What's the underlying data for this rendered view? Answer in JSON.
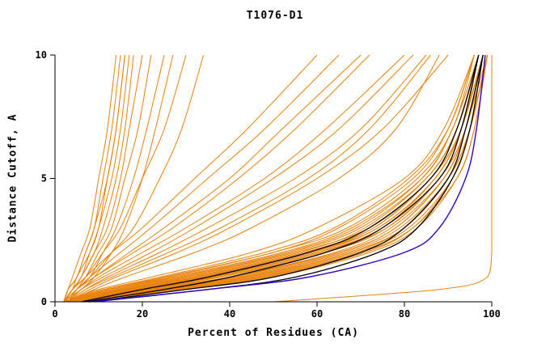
{
  "chart_data": {
    "type": "line",
    "title": "T1076-D1",
    "xlabel": "Percent of Residues (CA)",
    "ylabel": "Distance Cutoff, A",
    "xlim": [
      0,
      100
    ],
    "ylim": [
      0,
      10
    ],
    "xticks": [
      0,
      20,
      40,
      60,
      80,
      100
    ],
    "yticks": [
      0,
      5,
      10
    ],
    "grid": false,
    "legend": "none",
    "colors": {
      "orange": "#e8820c",
      "black": "#000000",
      "blue": "#3300cc"
    },
    "y_anchors": [
      0,
      0.5,
      1,
      2,
      3,
      5,
      7,
      10
    ],
    "series": [
      {
        "color": "orange",
        "xs": [
          3,
          12,
          25,
          50,
          65,
          82,
          90,
          96
        ]
      },
      {
        "color": "orange",
        "xs": [
          3,
          18,
          35,
          60,
          75,
          88,
          93,
          98
        ]
      },
      {
        "color": "orange",
        "xs": [
          4,
          20,
          40,
          65,
          78,
          89,
          94,
          98
        ]
      },
      {
        "color": "orange",
        "xs": [
          2,
          10,
          22,
          45,
          60,
          80,
          89,
          96
        ]
      },
      {
        "color": "orange",
        "xs": [
          3,
          25,
          45,
          68,
          80,
          90,
          94,
          99
        ]
      },
      {
        "color": "orange",
        "xs": [
          3,
          15,
          30,
          55,
          72,
          86,
          92,
          97
        ]
      },
      {
        "color": "orange",
        "xs": [
          4,
          22,
          42,
          66,
          79,
          90,
          95,
          99
        ]
      },
      {
        "color": "orange",
        "xs": [
          3,
          17,
          33,
          58,
          74,
          87,
          93,
          98
        ]
      },
      {
        "color": "orange",
        "xs": [
          2,
          13,
          27,
          52,
          68,
          84,
          91,
          97
        ]
      },
      {
        "color": "orange",
        "xs": [
          3,
          20,
          38,
          62,
          76,
          88,
          94,
          98
        ]
      },
      {
        "color": "orange",
        "xs": [
          4,
          28,
          48,
          70,
          82,
          91,
          95,
          99
        ]
      },
      {
        "color": "orange",
        "xs": [
          3,
          16,
          32,
          57,
          73,
          86,
          93,
          97
        ]
      },
      {
        "color": "orange",
        "xs": [
          2,
          11,
          24,
          48,
          64,
          81,
          90,
          96
        ]
      },
      {
        "color": "orange",
        "xs": [
          3,
          23,
          43,
          67,
          80,
          90,
          95,
          99
        ]
      },
      {
        "color": "orange",
        "xs": [
          3,
          19,
          36,
          61,
          75,
          87,
          93,
          98
        ]
      },
      {
        "color": "orange",
        "xs": [
          4,
          26,
          46,
          69,
          81,
          91,
          95,
          99
        ]
      },
      {
        "color": "orange",
        "xs": [
          3,
          14,
          29,
          54,
          70,
          85,
          92,
          97
        ]
      },
      {
        "color": "orange",
        "xs": [
          2,
          12,
          26,
          50,
          67,
          83,
          91,
          96
        ]
      },
      {
        "color": "orange",
        "xs": [
          3,
          21,
          40,
          64,
          77,
          89,
          94,
          98
        ]
      },
      {
        "color": "orange",
        "xs": [
          4,
          30,
          50,
          72,
          83,
          92,
          96,
          99
        ]
      },
      {
        "color": "orange",
        "xs": [
          3,
          18,
          34,
          59,
          74,
          87,
          93,
          98
        ]
      },
      {
        "color": "orange",
        "xs": [
          2,
          15,
          31,
          56,
          71,
          85,
          92,
          97
        ]
      },
      {
        "color": "orange",
        "xs": [
          3,
          24,
          44,
          68,
          80,
          90,
          95,
          99
        ]
      },
      {
        "color": "orange",
        "xs": [
          3,
          17,
          35,
          60,
          76,
          88,
          94,
          98
        ]
      },
      {
        "color": "orange",
        "xs": [
          4,
          27,
          47,
          70,
          82,
          91,
          95,
          99
        ]
      },
      {
        "color": "orange",
        "xs": [
          3,
          13,
          28,
          53,
          69,
          84,
          91,
          97
        ]
      },
      {
        "color": "orange",
        "xs": [
          2,
          16,
          33,
          58,
          73,
          86,
          93,
          97
        ]
      },
      {
        "color": "orange",
        "xs": [
          3,
          22,
          41,
          65,
          78,
          89,
          94,
          98
        ]
      },
      {
        "color": "orange",
        "xs": [
          4,
          29,
          49,
          71,
          82,
          92,
          96,
          99
        ]
      },
      {
        "color": "orange",
        "xs": [
          3,
          19,
          37,
          62,
          76,
          88,
          94,
          98
        ]
      },
      {
        "color": "orange",
        "xs": [
          3,
          8,
          14,
          28,
          40,
          60,
          75,
          90
        ]
      },
      {
        "color": "orange",
        "xs": [
          3,
          7,
          12,
          24,
          35,
          55,
          70,
          85
        ]
      },
      {
        "color": "orange",
        "xs": [
          2,
          6,
          10,
          20,
          30,
          48,
          62,
          80
        ]
      },
      {
        "color": "orange",
        "xs": [
          3,
          9,
          16,
          32,
          45,
          65,
          78,
          88
        ]
      },
      {
        "color": "orange",
        "xs": [
          2,
          5,
          9,
          18,
          27,
          42,
          55,
          72
        ]
      },
      {
        "color": "orange",
        "xs": [
          3,
          6,
          11,
          22,
          32,
          50,
          65,
          82
        ]
      },
      {
        "color": "orange",
        "xs": [
          2,
          5,
          8,
          15,
          22,
          35,
          48,
          65
        ]
      },
      {
        "color": "orange",
        "xs": [
          3,
          7,
          13,
          26,
          38,
          58,
          72,
          86
        ]
      },
      {
        "color": "orange",
        "xs": [
          2,
          4,
          7,
          13,
          20,
          32,
          44,
          60
        ]
      },
      {
        "color": "orange",
        "xs": [
          3,
          5,
          9,
          17,
          25,
          40,
          52,
          70
        ]
      },
      {
        "color": "orange",
        "xs": [
          2,
          4,
          6,
          9,
          11,
          14,
          16,
          18
        ]
      },
      {
        "color": "orange",
        "xs": [
          3,
          5,
          7,
          10,
          13,
          16,
          19,
          22
        ]
      },
      {
        "color": "orange",
        "xs": [
          2,
          4,
          5,
          8,
          10,
          12,
          14,
          16
        ]
      },
      {
        "color": "orange",
        "xs": [
          2,
          3,
          5,
          7,
          9,
          11,
          13,
          15
        ]
      },
      {
        "color": "orange",
        "xs": [
          3,
          5,
          8,
          11,
          14,
          18,
          21,
          25
        ]
      },
      {
        "color": "orange",
        "xs": [
          2,
          4,
          6,
          9,
          12,
          15,
          17,
          20
        ]
      },
      {
        "color": "orange",
        "xs": [
          2,
          3,
          4,
          6,
          8,
          10,
          12,
          14
        ]
      },
      {
        "color": "orange",
        "xs": [
          3,
          6,
          9,
          13,
          16,
          20,
          23,
          27
        ]
      },
      {
        "color": "orange",
        "xs": [
          2,
          4,
          6,
          8,
          10,
          13,
          15,
          17
        ]
      },
      {
        "color": "orange",
        "xs": [
          2,
          3,
          5,
          7,
          9,
          12,
          14,
          16
        ]
      },
      {
        "color": "orange",
        "xs": [
          2,
          4,
          7,
          11,
          15,
          20,
          25,
          30
        ]
      },
      {
        "color": "orange",
        "xs": [
          3,
          5,
          8,
          13,
          18,
          24,
          29,
          34
        ]
      },
      {
        "color": "orange",
        "xs": [
          50,
          88,
          99,
          100,
          100,
          100,
          100,
          100
        ]
      },
      {
        "color": "black",
        "xs": [
          7,
          25,
          40,
          62,
          75,
          88,
          93,
          97
        ]
      },
      {
        "color": "black",
        "xs": [
          8,
          30,
          50,
          70,
          80,
          90,
          94,
          98
        ]
      },
      {
        "color": "black",
        "xs": [
          6,
          20,
          35,
          58,
          72,
          86,
          92,
          97
        ]
      },
      {
        "color": "black",
        "xs": [
          9,
          35,
          55,
          74,
          83,
          91,
          95,
          98
        ]
      },
      {
        "color": "blue",
        "xs": [
          8,
          35,
          58,
          80,
          88,
          94,
          96.5,
          98.5
        ]
      }
    ]
  }
}
